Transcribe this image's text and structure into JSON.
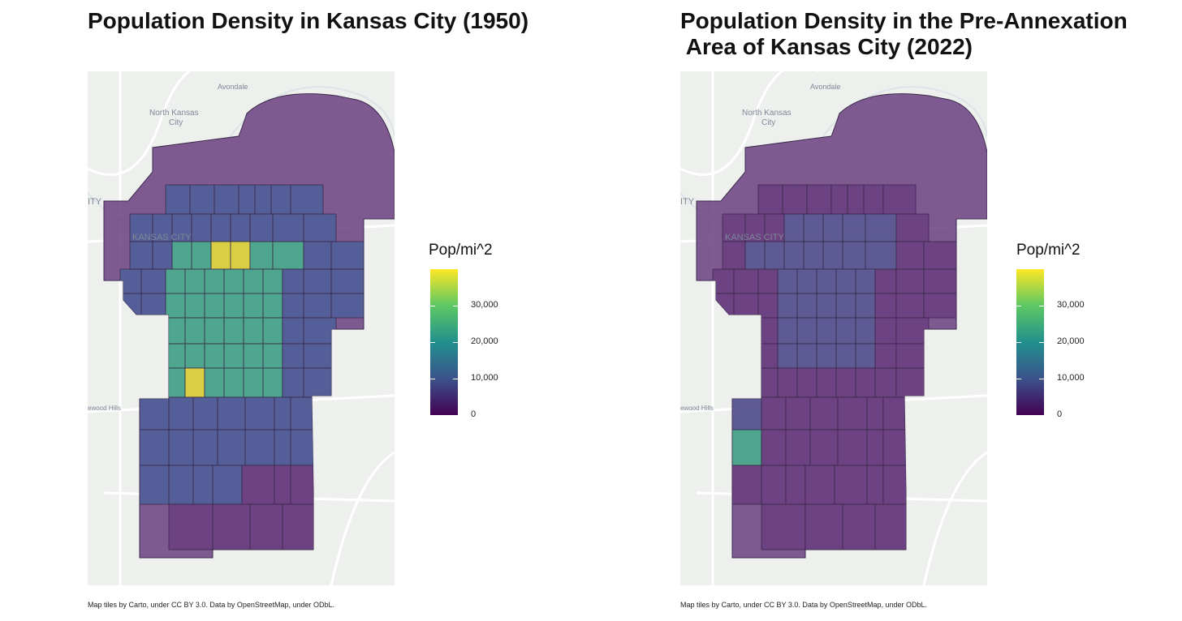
{
  "maps": [
    {
      "title": "Population Density in Kansas City (1950)",
      "basemap_labels": [
        "Avondale",
        "North Kansas",
        "City",
        "KANSAS CITY",
        "ITY",
        "ewood Hills"
      ],
      "legend": {
        "title": "Pop/mi^2",
        "ticks": [
          "30,000",
          "20,000",
          "10,000",
          "0"
        ],
        "tick_values": [
          30000,
          20000,
          10000,
          0
        ],
        "max": 40000
      },
      "caption": "Map tiles by Carto, under CC BY 3.0. Data by OpenStreetMap, under ODbL.",
      "colors": {
        "low": "#6b3f80",
        "mid": "#4f5f99",
        "high": "#47b08c",
        "peak": "#e6df3a"
      }
    },
    {
      "title": "Population Density in the Pre-Annexation\n Area of Kansas City (2022)",
      "basemap_labels": [
        "Avondale",
        "North Kansas",
        "City",
        "KANSAS CITY",
        "ITY",
        "ewood Hills"
      ],
      "legend": {
        "title": "Pop/mi^2",
        "ticks": [
          "30,000",
          "20,000",
          "10,000",
          "0"
        ],
        "tick_values": [
          30000,
          20000,
          10000,
          0
        ],
        "max": 40000
      },
      "caption": "Map tiles by Carto, under CC BY 3.0. Data by OpenStreetMap, under ODbL.",
      "colors": {
        "low": "#6b3f80",
        "mid": "#5a5a93",
        "high": "#47b08c",
        "peak": "#e6df3a"
      }
    }
  ]
}
